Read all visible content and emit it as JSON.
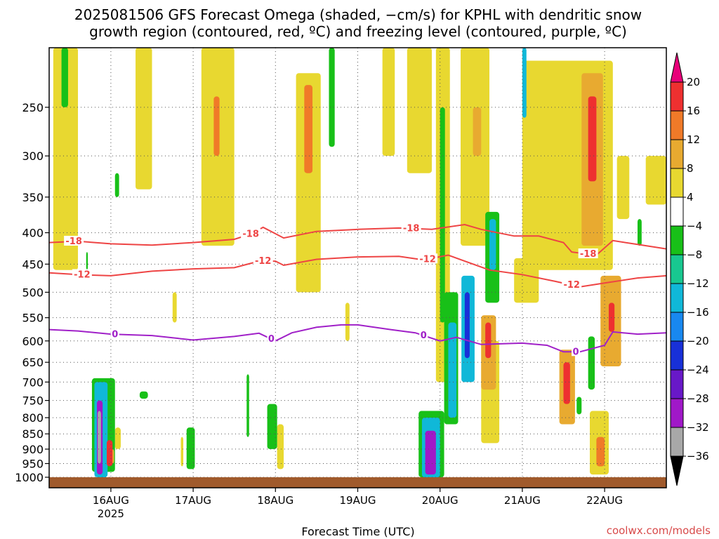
{
  "chart_data": {
    "type": "heatmap",
    "title_line1": "2025081506 GFS Forecast Omega (shaded, −cm/s) for KPHL with dendritic snow",
    "title_line2": "growth region (contoured, red, ºC) and freezing level (contoured, purple, ºC)",
    "xlabel": "Forecast Time (UTC)",
    "ylabel": "",
    "credit": "coolwx.com/models",
    "y_scale": "log-pressure",
    "y_range": [
      1000,
      200
    ],
    "y_ticks": [
      250,
      300,
      350,
      400,
      450,
      500,
      550,
      600,
      650,
      700,
      750,
      800,
      850,
      900,
      950,
      1000
    ],
    "x_range_days": [
      15.25,
      22.75
    ],
    "x_ticks": [
      {
        "day": 16,
        "label": "16AUG",
        "sub": "2025"
      },
      {
        "day": 17,
        "label": "17AUG",
        "sub": ""
      },
      {
        "day": 18,
        "label": "18AUG",
        "sub": ""
      },
      {
        "day": 19,
        "label": "19AUG",
        "sub": ""
      },
      {
        "day": 20,
        "label": "20AUG",
        "sub": ""
      },
      {
        "day": 21,
        "label": "21AUG",
        "sub": ""
      },
      {
        "day": 22,
        "label": "22AUG",
        "sub": ""
      }
    ],
    "grid": true,
    "colorbar": {
      "levels": [
        "20",
        "16",
        "12",
        "8",
        "4",
        "−4",
        "−8",
        "−12",
        "−16",
        "−20",
        "−24",
        "−28",
        "−32",
        "−36"
      ],
      "colors": [
        "#e8007a",
        "#ee3030",
        "#f07a28",
        "#e8aa30",
        "#e8d830",
        "#ffffff",
        "#18c018",
        "#18c890",
        "#10b8d8",
        "#1888f0",
        "#1830d8",
        "#6818c8",
        "#a018c8",
        "#a8a8a8",
        "#000000"
      ]
    },
    "contours": [
      {
        "label": "-18",
        "color": "#ee4444",
        "x": [
          15.25,
          15.6,
          16.0,
          16.5,
          17.0,
          17.5,
          17.7,
          17.85,
          18.1,
          18.5,
          19.0,
          19.5,
          19.9,
          20.3,
          20.5,
          20.9,
          21.2,
          21.5,
          21.6,
          21.9,
          22.1,
          22.4,
          22.75
        ],
        "y": [
          415,
          413,
          417,
          419,
          415,
          410,
          402,
          392,
          408,
          398,
          395,
          393,
          395,
          388,
          395,
          405,
          405,
          415,
          430,
          435,
          412,
          418,
          425
        ],
        "labels_at": [
          15.55,
          17.7,
          19.65,
          21.8
        ]
      },
      {
        "label": "-12",
        "color": "#ee4444",
        "x": [
          15.25,
          15.6,
          16.0,
          16.5,
          17.0,
          17.5,
          17.8,
          18.0,
          18.1,
          18.5,
          19.0,
          19.5,
          19.8,
          20.1,
          20.3,
          20.6,
          21.0,
          21.4,
          21.7,
          22.0,
          22.4,
          22.75
        ],
        "y": [
          465,
          468,
          470,
          462,
          458,
          456,
          445,
          445,
          452,
          442,
          438,
          437,
          443,
          435,
          445,
          460,
          468,
          480,
          490,
          483,
          474,
          470
        ],
        "labels_at": [
          15.65,
          17.85,
          19.85,
          21.6
        ]
      },
      {
        "label": "0",
        "color": "#a020c8",
        "x": [
          15.25,
          15.6,
          16.0,
          16.5,
          17.0,
          17.5,
          17.8,
          18.0,
          18.2,
          18.5,
          18.8,
          19.0,
          19.4,
          19.7,
          20.0,
          20.2,
          20.5,
          21.0,
          21.3,
          21.5,
          21.7,
          22.0,
          22.1,
          22.4,
          22.75
        ],
        "y": [
          575,
          578,
          585,
          588,
          598,
          590,
          583,
          600,
          582,
          570,
          565,
          565,
          575,
          582,
          600,
          592,
          608,
          605,
          610,
          625,
          625,
          610,
          580,
          585,
          582
        ],
        "labels_at": [
          16.05,
          17.95,
          19.8,
          21.65
        ]
      }
    ],
    "omega_cells": [
      {
        "t": [
          15.83,
          15.9
        ],
        "p": [
          750,
          990
        ],
        "v": -28
      },
      {
        "t": [
          15.84,
          15.88
        ],
        "p": [
          780,
          950
        ],
        "v": -32
      },
      {
        "t": [
          15.8,
          15.96
        ],
        "p": [
          700,
          1000
        ],
        "v": -12
      },
      {
        "t": [
          15.77,
          16.05
        ],
        "p": [
          690,
          980
        ],
        "v": -6
      },
      {
        "t": [
          15.95,
          16.02
        ],
        "p": [
          870,
          960
        ],
        "v": 16
      },
      {
        "t": [
          16.0,
          16.04
        ],
        "p": [
          900,
          950
        ],
        "v": 8
      },
      {
        "t": [
          16.05,
          16.12
        ],
        "p": [
          830,
          900
        ],
        "v": 5
      },
      {
        "t": [
          16.35,
          16.45
        ],
        "p": [
          725,
          745
        ],
        "v": -6
      },
      {
        "t": [
          16.92,
          17.02
        ],
        "p": [
          830,
          970
        ],
        "v": -6
      },
      {
        "t": [
          16.85,
          16.88
        ],
        "p": [
          860,
          960
        ],
        "v": 5
      },
      {
        "t": [
          17.65,
          17.68
        ],
        "p": [
          680,
          860
        ],
        "v": -6
      },
      {
        "t": [
          17.9,
          18.02
        ],
        "p": [
          760,
          900
        ],
        "v": -6
      },
      {
        "t": [
          18.02,
          18.1
        ],
        "p": [
          820,
          970
        ],
        "v": 5
      },
      {
        "t": [
          19.82,
          19.95
        ],
        "p": [
          840,
          990
        ],
        "v": -28
      },
      {
        "t": [
          19.78,
          20.0
        ],
        "p": [
          800,
          1000
        ],
        "v": -12
      },
      {
        "t": [
          19.74,
          20.05
        ],
        "p": [
          780,
          1000
        ],
        "v": -6
      },
      {
        "t": [
          20.1,
          20.2
        ],
        "p": [
          560,
          800
        ],
        "v": -12
      },
      {
        "t": [
          20.05,
          20.22
        ],
        "p": [
          500,
          820
        ],
        "v": -6
      },
      {
        "t": [
          20.3,
          20.36
        ],
        "p": [
          500,
          640
        ],
        "v": -20
      },
      {
        "t": [
          20.26,
          20.42
        ],
        "p": [
          470,
          700
        ],
        "v": -12
      },
      {
        "t": [
          20.55,
          20.62
        ],
        "p": [
          560,
          640
        ],
        "v": 16
      },
      {
        "t": [
          20.5,
          20.68
        ],
        "p": [
          545,
          720
        ],
        "v": 8
      },
      {
        "t": [
          20.6,
          20.68
        ],
        "p": [
          380,
          460
        ],
        "v": -12
      },
      {
        "t": [
          20.55,
          20.72
        ],
        "p": [
          370,
          520
        ],
        "v": -6
      },
      {
        "t": [
          20.5,
          20.72
        ],
        "p": [
          600,
          880
        ],
        "v": 5
      },
      {
        "t": [
          21.5,
          21.58
        ],
        "p": [
          650,
          760
        ],
        "v": 16
      },
      {
        "t": [
          21.45,
          21.64
        ],
        "p": [
          620,
          820
        ],
        "v": 8
      },
      {
        "t": [
          21.66,
          21.72
        ],
        "p": [
          740,
          790
        ],
        "v": -6
      },
      {
        "t": [
          21.8,
          21.88
        ],
        "p": [
          590,
          720
        ],
        "v": -6
      },
      {
        "t": [
          21.9,
          22.0
        ],
        "p": [
          860,
          960
        ],
        "v": 12
      },
      {
        "t": [
          21.82,
          22.05
        ],
        "p": [
          780,
          990
        ],
        "v": 5
      },
      {
        "t": [
          22.05,
          22.12
        ],
        "p": [
          520,
          580
        ],
        "v": 16
      },
      {
        "t": [
          21.95,
          22.2
        ],
        "p": [
          470,
          660
        ],
        "v": 8
      },
      {
        "t": [
          21.8,
          21.9
        ],
        "p": [
          240,
          330
        ],
        "v": 16
      },
      {
        "t": [
          21.72,
          21.98
        ],
        "p": [
          220,
          420
        ],
        "v": 8
      },
      {
        "t": [
          21.0,
          22.1
        ],
        "p": [
          210,
          460
        ],
        "v": 5
      },
      {
        "t": [
          21.0,
          21.05
        ],
        "p": [
          200,
          260
        ],
        "v": -12
      },
      {
        "t": [
          20.9,
          21.2
        ],
        "p": [
          440,
          520
        ],
        "v": 5
      },
      {
        "t": [
          17.25,
          17.32
        ],
        "p": [
          240,
          300
        ],
        "v": 12
      },
      {
        "t": [
          17.1,
          17.5
        ],
        "p": [
          200,
          420
        ],
        "v": 5
      },
      {
        "t": [
          16.3,
          16.5
        ],
        "p": [
          200,
          340
        ],
        "v": 5
      },
      {
        "t": [
          15.3,
          15.6
        ],
        "p": [
          200,
          460
        ],
        "v": 5
      },
      {
        "t": [
          15.4,
          15.48
        ],
        "p": [
          200,
          250
        ],
        "v": -6
      },
      {
        "t": [
          18.25,
          18.55
        ],
        "p": [
          220,
          500
        ],
        "v": 5
      },
      {
        "t": [
          18.35,
          18.45
        ],
        "p": [
          230,
          320
        ],
        "v": 12
      },
      {
        "t": [
          18.65,
          18.72
        ],
        "p": [
          200,
          290
        ],
        "v": -6
      },
      {
        "t": [
          19.3,
          19.45
        ],
        "p": [
          200,
          300
        ],
        "v": 5
      },
      {
        "t": [
          19.6,
          19.9
        ],
        "p": [
          200,
          320
        ],
        "v": 5
      },
      {
        "t": [
          20.0,
          20.06
        ],
        "p": [
          250,
          560
        ],
        "v": -6
      },
      {
        "t": [
          19.95,
          20.12
        ],
        "p": [
          200,
          700
        ],
        "v": 5
      },
      {
        "t": [
          20.25,
          20.6
        ],
        "p": [
          200,
          420
        ],
        "v": 5
      },
      {
        "t": [
          20.4,
          20.5
        ],
        "p": [
          250,
          300
        ],
        "v": 8
      },
      {
        "t": [
          22.15,
          22.3
        ],
        "p": [
          300,
          380
        ],
        "v": 5
      },
      {
        "t": [
          22.4,
          22.45
        ],
        "p": [
          380,
          420
        ],
        "v": -6
      },
      {
        "t": [
          22.5,
          22.75
        ],
        "p": [
          300,
          360
        ],
        "v": 5
      },
      {
        "t": [
          16.05,
          16.1
        ],
        "p": [
          320,
          350
        ],
        "v": -6
      },
      {
        "t": [
          15.7,
          15.72
        ],
        "p": [
          430,
          460
        ],
        "v": -6
      },
      {
        "t": [
          18.85,
          18.9
        ],
        "p": [
          520,
          600
        ],
        "v": 5
      },
      {
        "t": [
          16.75,
          16.8
        ],
        "p": [
          500,
          560
        ],
        "v": 5
      }
    ]
  }
}
